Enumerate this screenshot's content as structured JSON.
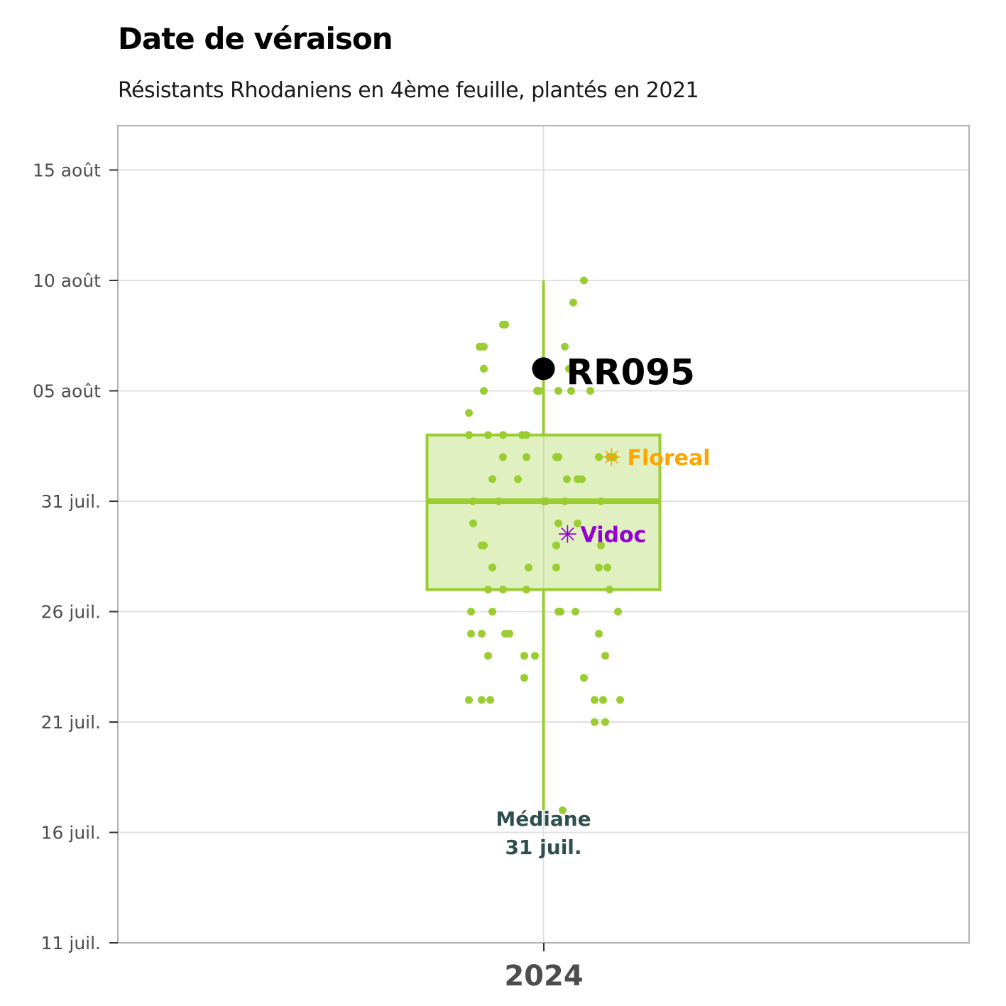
{
  "chart_data": {
    "type": "boxplot-jitter",
    "title": "Date de véraison",
    "subtitle": "Résistants Rhodaniens en 4ème feuille, plantés en 2021",
    "x_category": "2024",
    "y_ticks": [
      "11 juil.",
      "16 juil.",
      "21 juil.",
      "26 juil.",
      "31 juil.",
      "05 août",
      "10 août",
      "15 août"
    ],
    "y_tick_days": [
      0,
      5,
      10,
      15,
      20,
      25,
      30,
      35
    ],
    "ylim_days": [
      0,
      37
    ],
    "box": {
      "whisker_low": 6,
      "q1": 16,
      "median": 20,
      "q3": 23,
      "whisker_high": 30
    },
    "highlight": {
      "label": "RR095",
      "day": 26,
      "color": "#000000"
    },
    "references": [
      {
        "label": "Floreal",
        "day": 22,
        "color": "#ffa500"
      },
      {
        "label": "Vidoc",
        "day": 18.5,
        "color": "#9400d3"
      }
    ],
    "median_annotation": {
      "line1": "Médiane",
      "line2": "31 juil."
    },
    "points": [
      [
        1.9,
        30
      ],
      [
        1.4,
        29
      ],
      [
        -1.9,
        28
      ],
      [
        -1.8,
        28
      ],
      [
        -3.0,
        27
      ],
      [
        -2.9,
        27
      ],
      [
        -2.8,
        27
      ],
      [
        1.0,
        27
      ],
      [
        -2.8,
        26
      ],
      [
        1.2,
        26
      ],
      [
        -2.8,
        25
      ],
      [
        -3.5,
        24
      ],
      [
        0.7,
        25
      ],
      [
        -0.3,
        25
      ],
      [
        -0.2,
        25
      ],
      [
        1.3,
        25
      ],
      [
        2.2,
        25
      ],
      [
        -3.5,
        23
      ],
      [
        -2.6,
        23
      ],
      [
        -1.9,
        23
      ],
      [
        -1.0,
        23
      ],
      [
        -0.8,
        23
      ],
      [
        -1.9,
        22
      ],
      [
        -0.8,
        22
      ],
      [
        0.6,
        22
      ],
      [
        0.7,
        22
      ],
      [
        2.6,
        22
      ],
      [
        3.1,
        22
      ],
      [
        3.3,
        22
      ],
      [
        -2.4,
        21
      ],
      [
        -1.2,
        21
      ],
      [
        1.1,
        21
      ],
      [
        1.6,
        21
      ],
      [
        1.8,
        21
      ],
      [
        -3.3,
        20
      ],
      [
        -2.1,
        20
      ],
      [
        0.0,
        20
      ],
      [
        0.1,
        20
      ],
      [
        1.0,
        20
      ],
      [
        2.7,
        20
      ],
      [
        -3.3,
        19
      ],
      [
        0.7,
        19
      ],
      [
        1.6,
        19
      ],
      [
        -2.9,
        18
      ],
      [
        -2.8,
        18
      ],
      [
        0.6,
        18
      ],
      [
        0.6,
        18
      ],
      [
        2.7,
        18
      ],
      [
        -2.4,
        17
      ],
      [
        -0.7,
        17
      ],
      [
        0.6,
        17
      ],
      [
        2.6,
        17
      ],
      [
        3.0,
        17
      ],
      [
        -2.6,
        16
      ],
      [
        -1.9,
        16
      ],
      [
        -0.8,
        16
      ],
      [
        3.1,
        16
      ],
      [
        -3.4,
        15
      ],
      [
        -2.4,
        15
      ],
      [
        0.7,
        15
      ],
      [
        0.8,
        15
      ],
      [
        1.5,
        15
      ],
      [
        3.5,
        15
      ],
      [
        -3.4,
        14
      ],
      [
        -2.9,
        14
      ],
      [
        -1.8,
        14
      ],
      [
        -1.6,
        14
      ],
      [
        2.6,
        14
      ],
      [
        -2.6,
        13
      ],
      [
        -0.9,
        13
      ],
      [
        -0.4,
        13
      ],
      [
        2.9,
        13
      ],
      [
        -0.9,
        12
      ],
      [
        1.9,
        12
      ],
      [
        -3.5,
        11
      ],
      [
        -2.9,
        11
      ],
      [
        -2.5,
        11
      ],
      [
        2.4,
        11
      ],
      [
        2.8,
        11
      ],
      [
        3.6,
        11
      ],
      [
        2.4,
        10
      ],
      [
        2.9,
        10
      ],
      [
        0.9,
        6
      ]
    ]
  }
}
